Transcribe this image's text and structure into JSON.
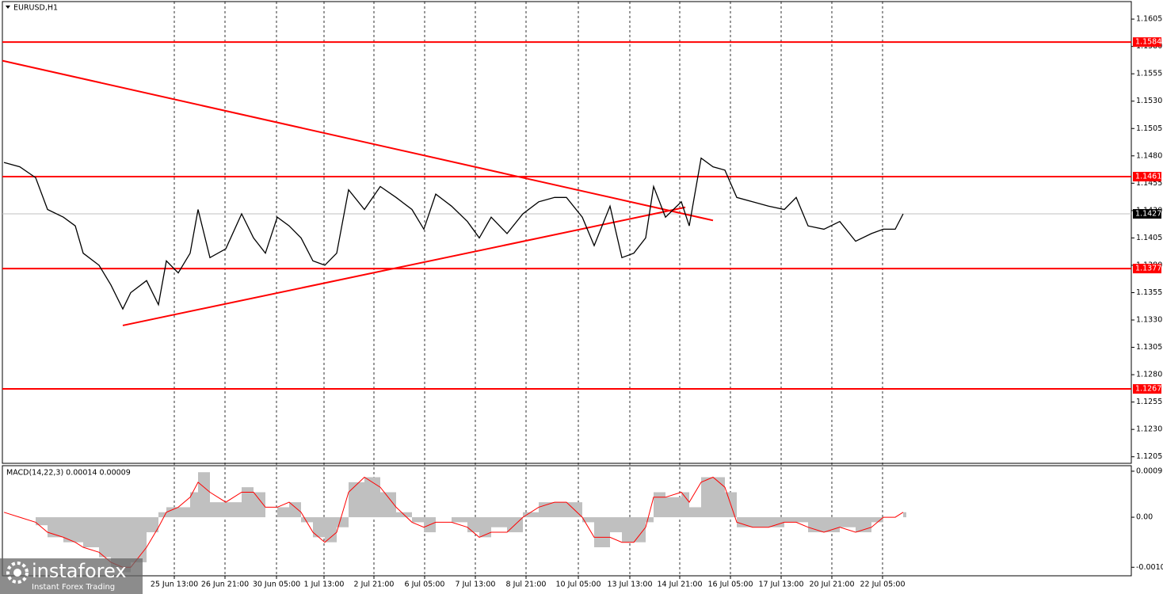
{
  "chart_data": [
    {
      "type": "line",
      "title": "EURUSD,H1",
      "color": "#000000",
      "x": [
        1,
        11,
        21,
        28.5,
        38.5,
        46,
        51,
        61,
        68.5,
        76,
        81,
        91,
        98.5,
        103.5,
        111,
        118.5,
        123.5,
        131,
        141,
        151,
        158.5,
        166,
        173.5,
        181,
        188.5,
        196,
        203.5,
        211,
        218.5,
        228.5,
        238.5,
        248.5,
        258.5,
        266,
        273.5,
        283.5,
        293.5,
        301,
        308.5,
        318.5,
        328.5,
        338.5,
        348.5,
        356,
        366,
        373.5,
        383.5,
        391,
        398.5,
        406,
        411,
        418.5,
        428.5,
        433.5,
        441,
        448.5,
        456,
        463.5,
        473.5,
        483.5,
        493.5,
        501,
        508.5,
        518.5,
        528.5,
        538.5,
        548.5,
        556,
        563.5,
        568.5
      ],
      "values": [
        1.1474,
        1.147,
        1.146,
        1.1431,
        1.1424,
        1.1416,
        1.1391,
        1.138,
        1.1362,
        1.134,
        1.1355,
        1.1366,
        1.1344,
        1.1384,
        1.1373,
        1.1391,
        1.1431,
        1.1387,
        1.1395,
        1.1427,
        1.1405,
        1.1391,
        1.1424,
        1.1416,
        1.1405,
        1.1384,
        1.138,
        1.1391,
        1.1449,
        1.1431,
        1.1452,
        1.1442,
        1.1431,
        1.1413,
        1.1445,
        1.1434,
        1.142,
        1.1405,
        1.1424,
        1.1409,
        1.1427,
        1.1438,
        1.1442,
        1.1442,
        1.1424,
        1.1398,
        1.1434,
        1.1387,
        1.1391,
        1.1405,
        1.1452,
        1.1424,
        1.1438,
        1.1416,
        1.1478,
        1.147,
        1.1467,
        1.1442,
        1.1438,
        1.1434,
        1.1431,
        1.1442,
        1.1416,
        1.1413,
        1.142,
        1.1402,
        1.1409,
        1.1413,
        1.1413,
        1.1427
      ],
      "xlim": [
        0,
        712.5
      ],
      "xticks": [
        {
          "value": 108.5,
          "label": "25 Jun 13:00"
        },
        {
          "value": 140.5,
          "label": "26 Jun 21:00"
        },
        {
          "value": 173,
          "label": "30 Jun 05:00"
        },
        {
          "value": 203,
          "label": "1 Jul 13:00"
        },
        {
          "value": 234.5,
          "label": "2 Jul 21:00"
        },
        {
          "value": 266.5,
          "label": "6 Jul 05:00"
        },
        {
          "value": 298.5,
          "label": "7 Jul 13:00"
        },
        {
          "value": 330.5,
          "label": "8 Jul 21:00"
        },
        {
          "value": 363.5,
          "label": "10 Jul 05:00"
        },
        {
          "value": 396,
          "label": "13 Jul 13:00"
        },
        {
          "value": 427.5,
          "label": "14 Jul 21:00"
        },
        {
          "value": 459.5,
          "label": "16 Jul 05:00"
        },
        {
          "value": 491.5,
          "label": "17 Jul 13:00"
        },
        {
          "value": 523.5,
          "label": "20 Jul 21:00"
        },
        {
          "value": 555.5,
          "label": "22 Jul 05:00"
        }
      ],
      "ylim": [
        1.1199,
        1.1621
      ],
      "yticks": [
        1.1605,
        {
          "value": 1.158,
          "label": "1.1580"
        },
        1.1555,
        {
          "value": 1.153,
          "label": "1.1530"
        },
        1.1505,
        {
          "value": 1.148,
          "label": "1.1480"
        },
        1.1455,
        {
          "value": 1.143,
          "label": "1.1430"
        },
        1.1405,
        {
          "value": 1.138,
          "label": "1.1380"
        },
        1.1355,
        {
          "value": 1.133,
          "label": "1.1330"
        },
        1.1305,
        {
          "value": 1.128,
          "label": "1.1280"
        },
        1.1255,
        {
          "value": 1.123,
          "label": "1.1230"
        },
        1.1205
      ],
      "levels": [
        1.1584,
        1.1461,
        1.1377,
        1.1267
      ],
      "level_color": "#ff0000",
      "last_price": 1.1427,
      "trendlines": [
        {
          "x": [
            0,
            448.5
          ],
          "values": [
            1.1567,
            1.1421
          ]
        },
        {
          "x": [
            76,
            431
          ],
          "values": [
            1.1325,
            1.1433
          ]
        }
      ],
      "trendline_color": "#ff0000"
    },
    {
      "type": "macd",
      "title": "MACD(14,22,3) 0.00014 0.00009",
      "x": [
        1,
        11,
        21,
        28.5,
        38.5,
        46,
        51,
        61,
        68.5,
        76,
        81,
        91,
        98.5,
        103.5,
        111,
        118.5,
        123.5,
        131,
        141,
        151,
        158.5,
        166,
        173.5,
        181,
        188.5,
        196,
        203.5,
        211,
        218.5,
        228.5,
        238.5,
        248.5,
        258.5,
        266,
        273.5,
        283.5,
        293.5,
        301,
        308.5,
        318.5,
        328.5,
        338.5,
        348.5,
        356,
        366,
        373.5,
        383.5,
        391,
        398.5,
        406,
        411,
        418.5,
        428.5,
        433.5,
        441,
        448.5,
        456,
        463.5,
        473.5,
        483.5,
        493.5,
        501,
        508.5,
        518.5,
        528.5,
        538.5,
        548.5,
        556,
        563.5,
        568.5
      ],
      "xlim": [
        0,
        712.5
      ],
      "series": [
        {
          "name": "MACD",
          "color": "#c0c0c0",
          "values": [
            0,
            0,
            -0.00016,
            -0.0004,
            -0.0005,
            -0.0005,
            -0.0006,
            -0.0008,
            -0.001,
            -0.0011,
            -0.0009,
            -0.0003,
            0.0001,
            0.0002,
            0.0002,
            0.0005,
            0.0009,
            0.0003,
            0.0003,
            0.0006,
            0.0005,
            0,
            0.0002,
            0.0003,
            -0.0001,
            -0.0004,
            -0.0005,
            -0.0002,
            0.0007,
            0.0008,
            0.0005,
            0.0001,
            -0.0001,
            -0.0003,
            0,
            -0.0001,
            -0.0003,
            -0.0004,
            -0.0002,
            -0.0003,
            0.0001,
            0.0003,
            0.0003,
            0.0003,
            -0.0001,
            -0.0006,
            -0.0003,
            -0.0005,
            -0.0005,
            -0.0001,
            0.0005,
            0.0004,
            0.0005,
            0.0002,
            0.0008,
            0.0008,
            0.0005,
            -0.0002,
            -0.0002,
            -0.0002,
            -0.0001,
            -0.0001,
            -0.0003,
            -0.0003,
            -0.0002,
            -0.0003,
            -0.0001,
            0,
            0,
            0.0001
          ]
        },
        {
          "name": "Signal",
          "color": "#ff0000",
          "values": [
            0.0001,
            0,
            -0.0001,
            -0.0003,
            -0.0004,
            -0.0005,
            -0.0006,
            -0.0007,
            -0.0009,
            -0.001,
            -0.001,
            -0.0006,
            -0.0002,
            0.0001,
            0.0002,
            0.0004,
            0.0007,
            0.0005,
            0.0003,
            0.0005,
            0.0005,
            0.0002,
            0.0002,
            0.0003,
            0.0001,
            -0.0003,
            -0.0005,
            -0.0003,
            0.0005,
            0.0008,
            0.0006,
            0.0002,
            -0.0001,
            -0.0002,
            -0.0001,
            -0.0001,
            -0.0002,
            -0.0004,
            -0.0003,
            -0.0003,
            0,
            0.0002,
            0.0003,
            0.0003,
            0,
            -0.0004,
            -0.0004,
            -0.0005,
            -0.0005,
            -0.0002,
            0.0004,
            0.0004,
            0.0005,
            0.0003,
            0.0007,
            0.0008,
            0.0006,
            -0.0001,
            -0.0002,
            -0.0002,
            -0.0001,
            -0.0001,
            -0.0002,
            -0.0003,
            -0.0002,
            -0.0003,
            -0.0002,
            0,
            0,
            0.0001
          ]
        }
      ],
      "ylim": [
        -0.00117,
        0.00103
      ],
      "yticks": [
        0.00092,
        {
          "value": 0,
          "label": "0.00"
        },
        {
          "value": -0.001,
          "label": "-0.0010"
        }
      ]
    }
  ],
  "brand": {
    "name": "instaforex",
    "tagline": "Instant Forex Trading"
  }
}
